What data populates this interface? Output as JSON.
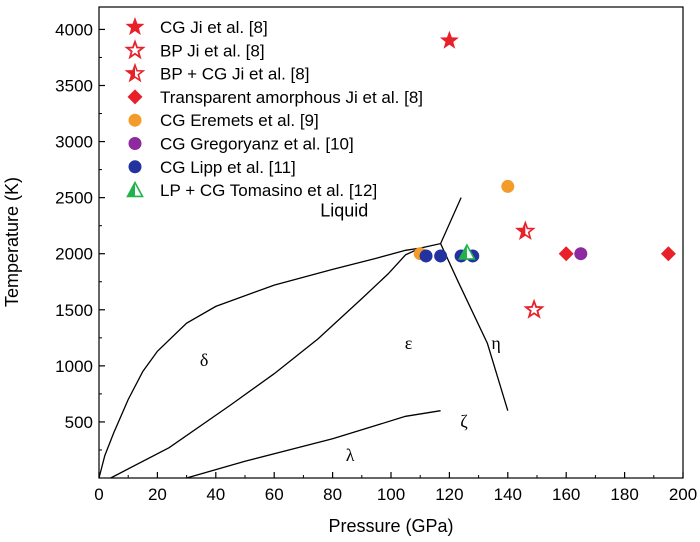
{
  "chart_data": {
    "type": "scatter",
    "xlabel": "Pressure (GPa)",
    "ylabel": "Temperature (K)",
    "xlim": [
      0,
      200
    ],
    "ylim": [
      0,
      4200
    ],
    "xticks": [
      0,
      20,
      40,
      60,
      80,
      100,
      120,
      140,
      160,
      180,
      200
    ],
    "yticks": [
      500,
      1000,
      1500,
      2000,
      2500,
      3000,
      3500,
      4000
    ],
    "colors": {
      "red": "#e8202a",
      "orange": "#f39c2b",
      "purple": "#8e2aa0",
      "blue": "#2233a0",
      "green": "#22b24b"
    },
    "series": [
      {
        "name": "CG Ji et al. [8]",
        "marker": "star-filled",
        "color": "#e8202a",
        "points": [
          [
            120,
            3900
          ]
        ]
      },
      {
        "name": "BP Ji et al. [8]",
        "marker": "star-open",
        "color": "#e8202a",
        "points": [
          [
            149,
            1500
          ]
        ]
      },
      {
        "name": "BP + CG Ji et al. [8]",
        "marker": "star-half",
        "color": "#e8202a",
        "points": [
          [
            146,
            2200
          ]
        ]
      },
      {
        "name": "Transparent amorphous Ji et al. [8]",
        "marker": "diamond",
        "color": "#e8202a",
        "points": [
          [
            160,
            2000
          ],
          [
            195,
            2000
          ]
        ]
      },
      {
        "name": "CG Eremets et al. [9]",
        "marker": "circle",
        "color": "#f39c2b",
        "points": [
          [
            110,
            2000
          ],
          [
            140,
            2600
          ]
        ]
      },
      {
        "name": "CG Gregoryanz et al. [10]",
        "marker": "circle",
        "color": "#8e2aa0",
        "points": [
          [
            165,
            2000
          ]
        ]
      },
      {
        "name": "CG Lipp et al. [11]",
        "marker": "circle",
        "color": "#2233a0",
        "points": [
          [
            112,
            1980
          ],
          [
            117,
            1980
          ],
          [
            124,
            1980
          ],
          [
            128,
            1980
          ]
        ]
      },
      {
        "name": "LP + CG Tomasino et al. [12]",
        "marker": "triangle-half",
        "color": "#22b24b",
        "points": [
          [
            126,
            2010
          ]
        ]
      }
    ],
    "phase_boundaries": [
      {
        "points": [
          [
            0,
            0
          ],
          [
            2,
            200
          ],
          [
            5,
            400
          ],
          [
            10,
            700
          ],
          [
            15,
            950
          ],
          [
            20,
            1130
          ],
          [
            30,
            1380
          ],
          [
            40,
            1530
          ],
          [
            60,
            1720
          ],
          [
            80,
            1860
          ],
          [
            95,
            1960
          ],
          [
            105,
            2030
          ],
          [
            110,
            2050
          ]
        ]
      },
      {
        "points": [
          [
            4,
            0
          ],
          [
            24,
            270
          ],
          [
            45,
            650
          ],
          [
            60,
            930
          ],
          [
            75,
            1240
          ],
          [
            90,
            1600
          ],
          [
            99,
            1820
          ],
          [
            105,
            1990
          ],
          [
            110,
            2050
          ],
          [
            117,
            2090
          ],
          [
            124,
            2500
          ]
        ]
      },
      {
        "points": [
          [
            117,
            2090
          ],
          [
            123,
            1750
          ],
          [
            133,
            1200
          ],
          [
            140,
            600
          ]
        ]
      },
      {
        "points": [
          [
            30,
            0
          ],
          [
            50,
            150
          ],
          [
            80,
            350
          ],
          [
            105,
            550
          ],
          [
            117,
            600
          ]
        ]
      }
    ],
    "annotations": [
      {
        "text": "Liquid",
        "x": 84,
        "y": 2330,
        "style": "liquid"
      },
      {
        "text": "δ",
        "x": 36,
        "y": 1000,
        "style": "phase"
      },
      {
        "text": "ε",
        "x": 106,
        "y": 1150,
        "style": "phase"
      },
      {
        "text": "η",
        "x": 136,
        "y": 1150,
        "style": "phase"
      },
      {
        "text": "ζ",
        "x": 125,
        "y": 450,
        "style": "phase"
      },
      {
        "text": "λ",
        "x": 86,
        "y": 150,
        "style": "phase"
      }
    ]
  }
}
